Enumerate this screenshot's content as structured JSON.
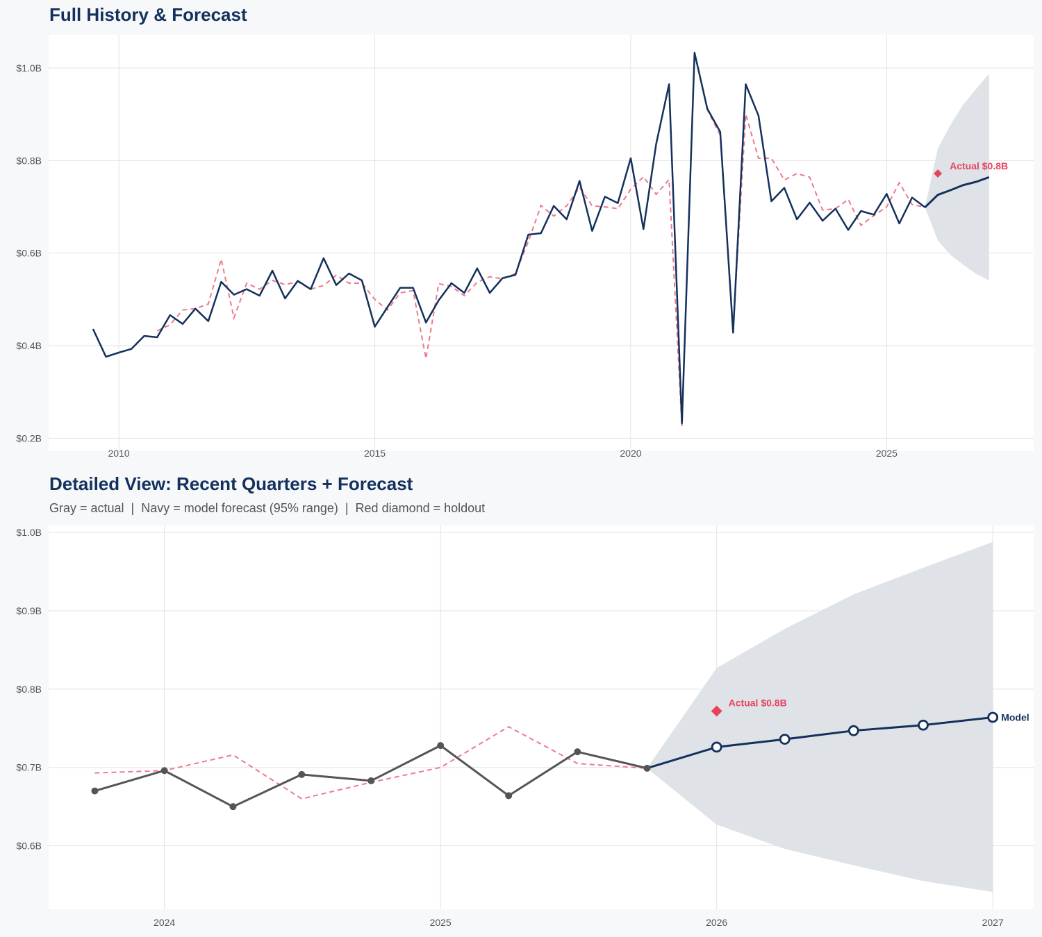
{
  "colors": {
    "actual_top": "#13315c",
    "actual_detail": "#555555",
    "fitted": "#ee7a8c",
    "forecast": "#13315c",
    "band": "#dde1e7",
    "holdout": "#e8435e",
    "grid": "#e3e3e3",
    "plot_bg": "#ffffff",
    "page_bg": "#f7f8fa"
  },
  "chart_data": [
    {
      "type": "line",
      "title": "Full History & Forecast",
      "xlim": [
        "2008-08-18",
        "2027-11-15"
      ],
      "ylim": [
        0.172,
        1.072
      ],
      "yticks": [
        0.2,
        0.4,
        0.6,
        0.8,
        1.0
      ],
      "ytick_labels": [
        "$0.2B",
        "$0.4B",
        "$0.6B",
        "$0.8B",
        "$1.0B"
      ],
      "xticks": [
        "2010-01-01",
        "2015-01-01",
        "2020-01-01",
        "2025-01-01"
      ],
      "xtick_labels": [
        "2010",
        "2015",
        "2020",
        "2025"
      ],
      "grid": true,
      "series": {
        "actual": {
          "start": "2009-07-01",
          "values": [
            0.436,
            0.376,
            0.385,
            0.393,
            0.421,
            0.418,
            0.466,
            0.447,
            0.48,
            0.453,
            0.538,
            0.51,
            0.522,
            0.508,
            0.562,
            0.502,
            0.54,
            0.522,
            0.589,
            0.531,
            0.556,
            0.541,
            0.441,
            0.483,
            0.525,
            0.525,
            0.45,
            0.498,
            0.535,
            0.514,
            0.567,
            0.514,
            0.546,
            0.553,
            0.64,
            0.643,
            0.702,
            0.673,
            0.756,
            0.648,
            0.722,
            0.708,
            0.805,
            0.652,
            0.836,
            0.965,
            0.232,
            1.033,
            0.912,
            0.862,
            0.428,
            0.965,
            0.897,
            0.712,
            0.741,
            0.673,
            0.709,
            0.67,
            0.696,
            0.65,
            0.691,
            0.683,
            0.728,
            0.664,
            0.72,
            0.699
          ]
        },
        "fitted": {
          "start": "2010-10-01",
          "values": [
            0.432,
            0.445,
            0.477,
            0.48,
            0.49,
            0.587,
            0.46,
            0.535,
            0.522,
            0.541,
            0.532,
            0.538,
            0.522,
            0.53,
            0.552,
            0.535,
            0.535,
            0.5,
            0.477,
            0.514,
            0.519,
            0.372,
            0.534,
            0.528,
            0.508,
            0.537,
            0.549,
            0.544,
            0.556,
            0.625,
            0.703,
            0.68,
            0.702,
            0.742,
            0.702,
            0.7,
            0.696,
            0.738,
            0.765,
            0.727,
            0.759,
            0.226,
            1.033,
            0.91,
            0.855,
            0.435,
            0.9,
            0.805,
            0.805,
            0.758,
            0.772,
            0.764,
            0.693,
            0.696,
            0.716,
            0.66,
            0.681,
            0.7,
            0.752,
            0.705,
            0.699
          ]
        },
        "forecast": {
          "dates": [
            "2026-01-01",
            "2026-04-01",
            "2026-07-01",
            "2026-10-01",
            "2027-01-01"
          ],
          "values": [
            0.726,
            0.736,
            0.747,
            0.754,
            0.764
          ],
          "lower": [
            0.627,
            0.596,
            0.575,
            0.555,
            0.541
          ],
          "upper": [
            0.827,
            0.877,
            0.921,
            0.955,
            0.988
          ]
        },
        "holdout": {
          "date": "2026-01-01",
          "value": 0.772,
          "label": "Actual $0.8B"
        }
      }
    },
    {
      "type": "line",
      "title": "Detailed View: Recent Quarters + Forecast",
      "subtitle": "Gray = actual  |  Navy = model forecast (95% range)  |  Red diamond = holdout",
      "xlim": [
        "2023-08-01",
        "2027-02-24"
      ],
      "ylim": [
        0.519,
        1.009
      ],
      "yticks": [
        0.6,
        0.7,
        0.8,
        0.9,
        1.0
      ],
      "ytick_labels": [
        "$0.6B",
        "$0.7B",
        "$0.8B",
        "$0.9B",
        "$1.0B"
      ],
      "xticks": [
        "2024-01-01",
        "2025-01-01",
        "2026-01-01",
        "2027-01-01"
      ],
      "xtick_labels": [
        "2024",
        "2025",
        "2026",
        "2027"
      ],
      "grid": true,
      "series": {
        "actual": {
          "dates": [
            "2023-10-01",
            "2024-01-01",
            "2024-04-01",
            "2024-07-01",
            "2024-10-01",
            "2025-01-01",
            "2025-04-01",
            "2025-07-01",
            "2025-10-01"
          ],
          "values": [
            0.67,
            0.696,
            0.65,
            0.691,
            0.683,
            0.728,
            0.664,
            0.72,
            0.699
          ]
        },
        "fitted": {
          "dates": [
            "2023-10-01",
            "2024-01-01",
            "2024-04-01",
            "2024-07-01",
            "2024-10-01",
            "2025-01-01",
            "2025-04-01",
            "2025-07-01",
            "2025-10-01"
          ],
          "values": [
            0.693,
            0.696,
            0.716,
            0.66,
            0.681,
            0.7,
            0.752,
            0.705,
            0.699
          ]
        },
        "forecast": {
          "dates": [
            "2026-01-01",
            "2026-04-01",
            "2026-07-01",
            "2026-10-01",
            "2027-01-01"
          ],
          "values": [
            0.726,
            0.736,
            0.747,
            0.754,
            0.764
          ],
          "lower": [
            0.627,
            0.596,
            0.575,
            0.555,
            0.541
          ],
          "upper": [
            0.827,
            0.877,
            0.921,
            0.955,
            0.988
          ],
          "label": "Model"
        },
        "holdout": {
          "date": "2026-01-01",
          "value": 0.772,
          "label": "Actual $0.8B"
        }
      }
    }
  ]
}
